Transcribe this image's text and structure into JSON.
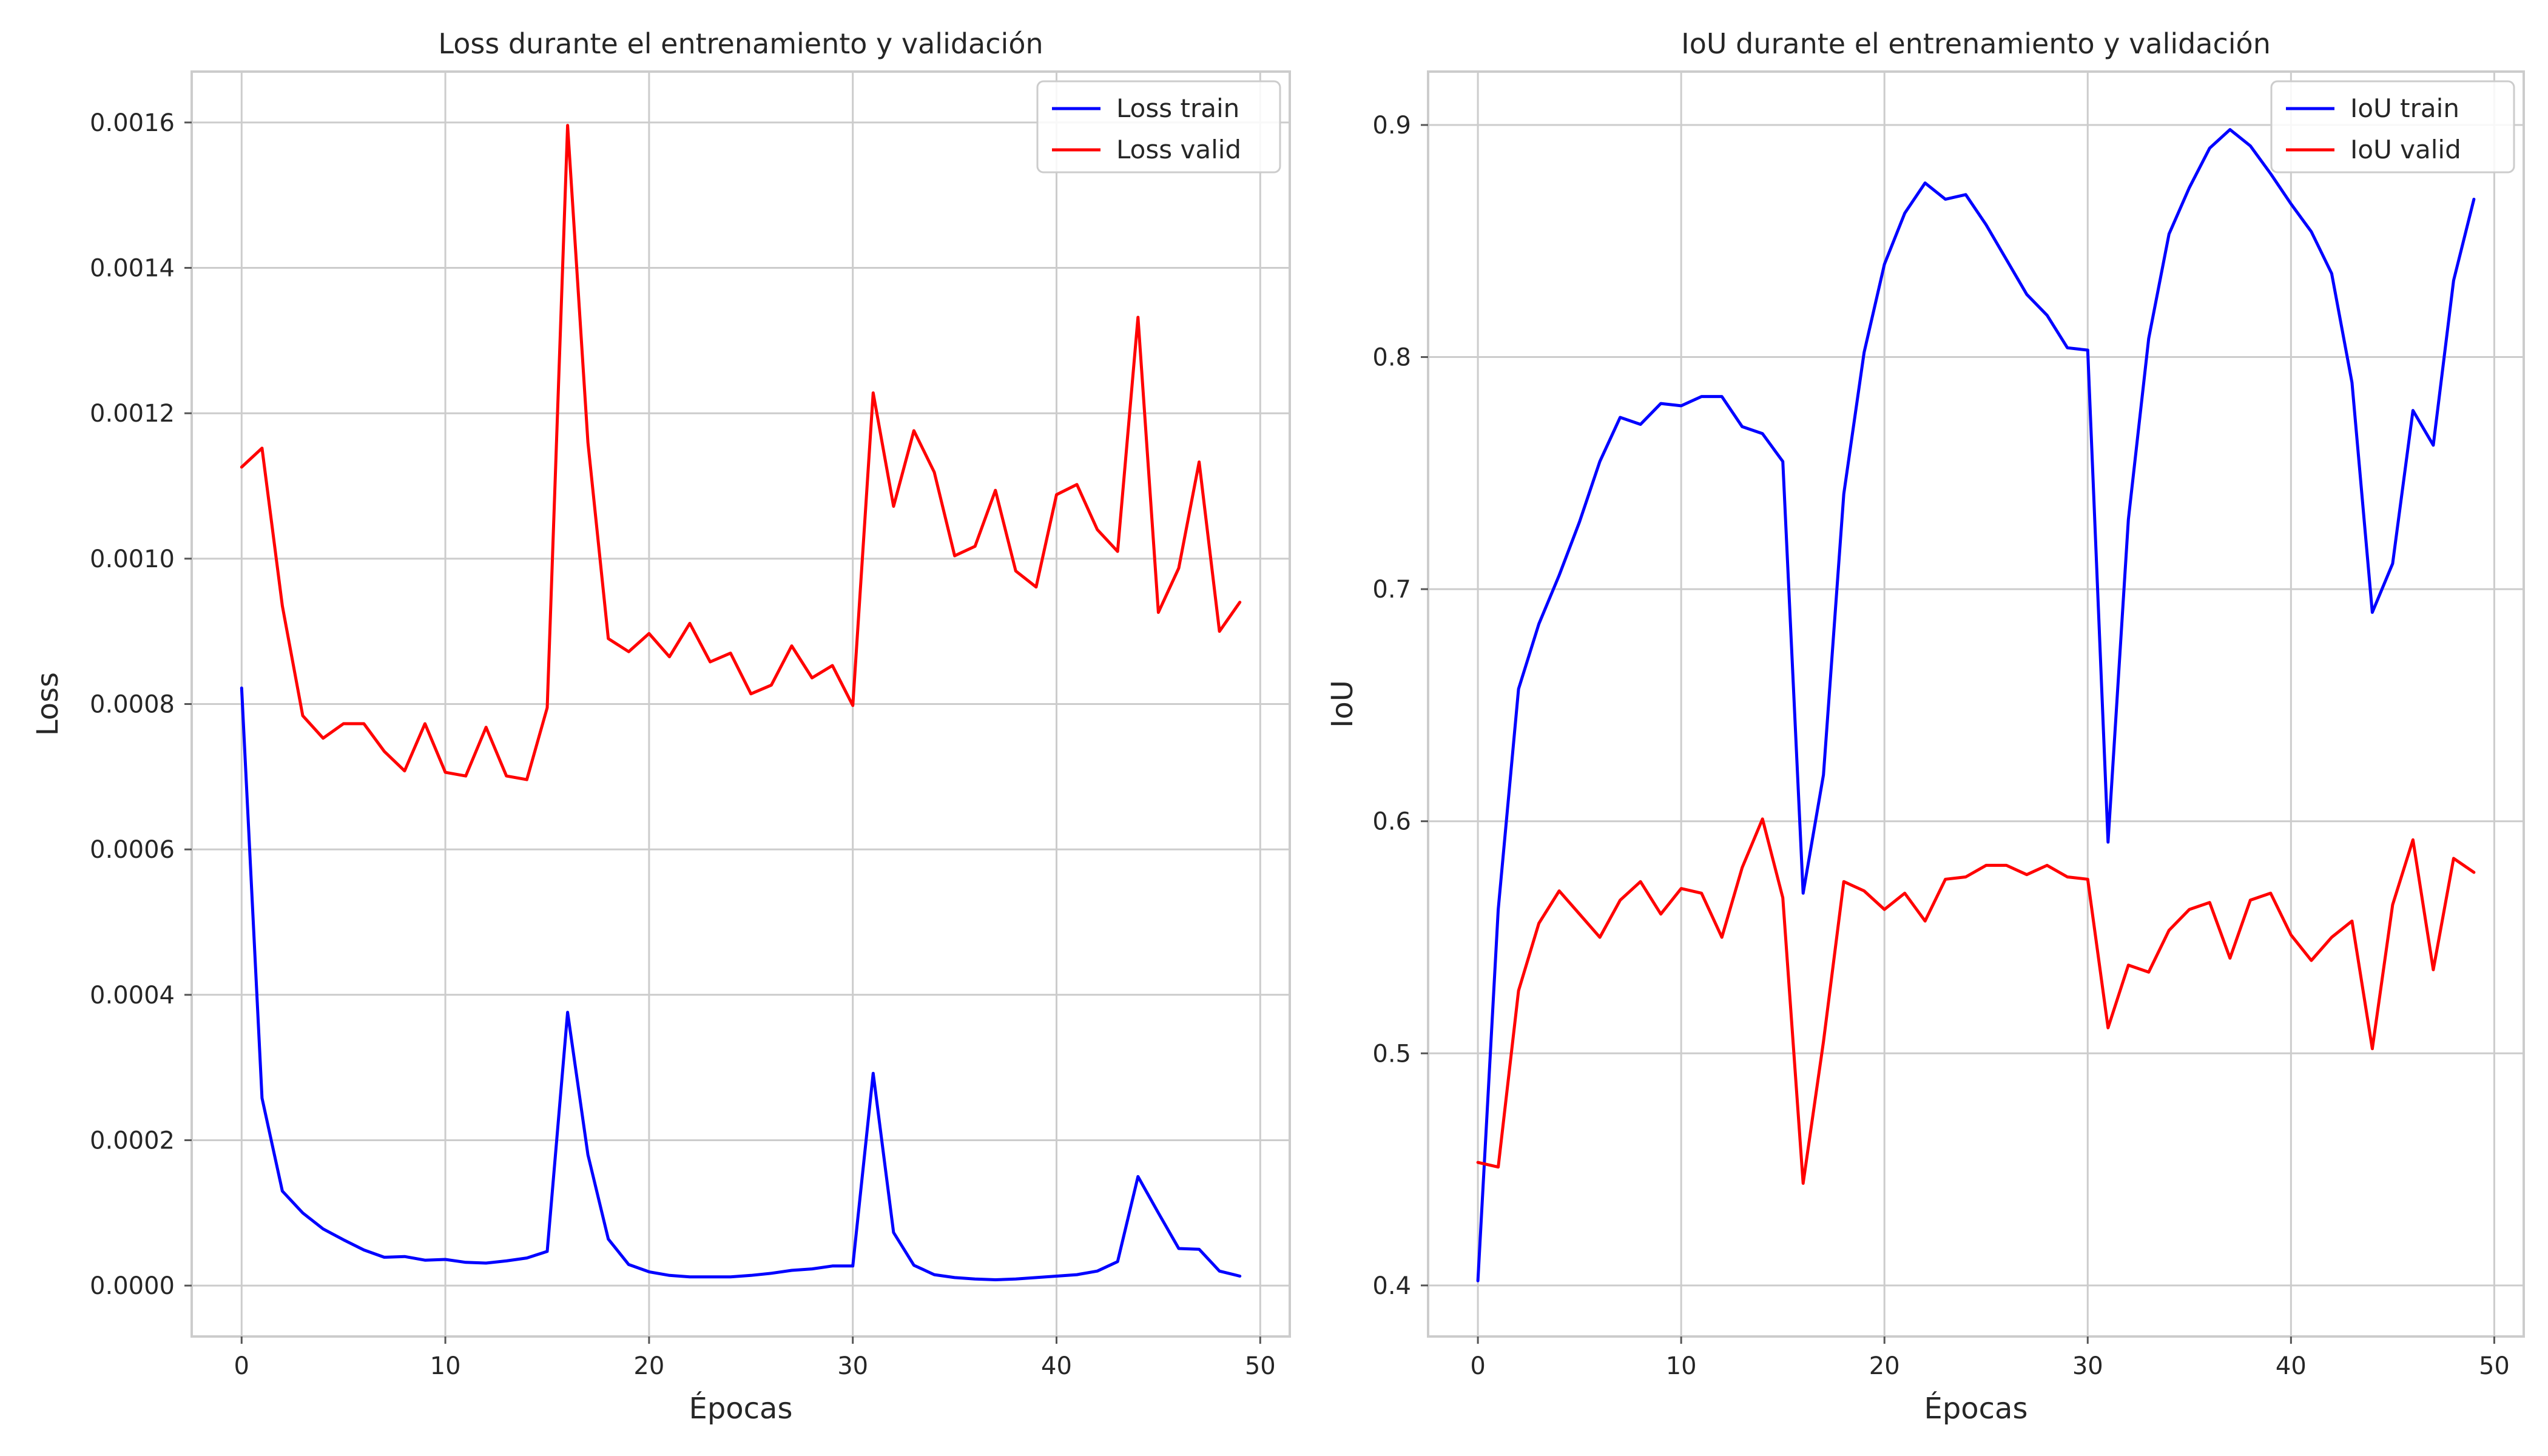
{
  "chart_data": [
    {
      "type": "line",
      "title": "Loss durante el entrenamiento y validación",
      "xlabel": "Épocas",
      "ylabel": "Loss",
      "xlim": [
        -2.45,
        51.45
      ],
      "ylim": [
        -7e-05,
        0.00167
      ],
      "xticks": [
        0,
        10,
        20,
        30,
        40,
        50
      ],
      "yticks": [
        0.0,
        0.0002,
        0.0004,
        0.0006,
        0.0008,
        0.001,
        0.0012,
        0.0014,
        0.0016
      ],
      "ytick_labels": [
        "0.0000",
        "0.0002",
        "0.0004",
        "0.0006",
        "0.0008",
        "0.0010",
        "0.0012",
        "0.0014",
        "0.0016"
      ],
      "grid": true,
      "legend_position": "top-right",
      "x": [
        0,
        1,
        2,
        3,
        4,
        5,
        6,
        7,
        8,
        9,
        10,
        11,
        12,
        13,
        14,
        15,
        16,
        17,
        18,
        19,
        20,
        21,
        22,
        23,
        24,
        25,
        26,
        27,
        28,
        29,
        30,
        31,
        32,
        33,
        34,
        35,
        36,
        37,
        38,
        39,
        40,
        41,
        42,
        43,
        44,
        45,
        46,
        47,
        48,
        49
      ],
      "series": [
        {
          "name": "Loss train",
          "color": "#0000ff",
          "values": [
            0.000822,
            0.000258,
            0.00013,
            0.0001,
            7.8e-05,
            6.3e-05,
            4.9e-05,
            3.9e-05,
            4e-05,
            3.5e-05,
            3.6e-05,
            3.2e-05,
            3.1e-05,
            3.4e-05,
            3.8e-05,
            4.7e-05,
            0.000376,
            0.00018,
            6.4e-05,
            2.9e-05,
            1.9e-05,
            1.4e-05,
            1.2e-05,
            1.2e-05,
            1.2e-05,
            1.4e-05,
            1.7e-05,
            2.1e-05,
            2.3e-05,
            2.7e-05,
            2.7e-05,
            0.000292,
            7.3e-05,
            2.8e-05,
            1.5e-05,
            1.1e-05,
            9e-06,
            8e-06,
            9e-06,
            1.1e-05,
            1.3e-05,
            1.5e-05,
            2e-05,
            3.3e-05,
            0.00015,
            0.0001,
            5.1e-05,
            5e-05,
            2e-05,
            1.3e-05
          ]
        },
        {
          "name": "Loss valid",
          "color": "#ff0000",
          "values": [
            0.001126,
            0.001152,
            0.000935,
            0.000784,
            0.000753,
            0.000773,
            0.000773,
            0.000735,
            0.000708,
            0.000773,
            0.000706,
            0.000701,
            0.000768,
            0.000701,
            0.000696,
            0.000795,
            0.001596,
            0.00116,
            0.00089,
            0.000872,
            0.000897,
            0.000865,
            0.000911,
            0.000858,
            0.00087,
            0.000814,
            0.000826,
            0.00088,
            0.000836,
            0.000853,
            0.000798,
            0.001228,
            0.001072,
            0.001176,
            0.001119,
            0.001004,
            0.001017,
            0.001094,
            0.000983,
            0.000961,
            0.001088,
            0.001102,
            0.00104,
            0.00101,
            0.001332,
            0.000926,
            0.000987,
            0.001133,
            0.0009,
            0.00094
          ]
        }
      ]
    },
    {
      "type": "line",
      "title": "IoU durante el entrenamiento y validación",
      "xlabel": "Épocas",
      "ylabel": "IoU",
      "xlim": [
        -2.45,
        51.45
      ],
      "ylim": [
        0.378,
        0.923
      ],
      "xticks": [
        0,
        10,
        20,
        30,
        40,
        50
      ],
      "yticks": [
        0.4,
        0.5,
        0.6,
        0.7,
        0.8,
        0.9
      ],
      "ytick_labels": [
        "0.4",
        "0.5",
        "0.6",
        "0.7",
        "0.8",
        "0.9"
      ],
      "grid": true,
      "legend_position": "top-right",
      "x": [
        0,
        1,
        2,
        3,
        4,
        5,
        6,
        7,
        8,
        9,
        10,
        11,
        12,
        13,
        14,
        15,
        16,
        17,
        18,
        19,
        20,
        21,
        22,
        23,
        24,
        25,
        26,
        27,
        28,
        29,
        30,
        31,
        32,
        33,
        34,
        35,
        36,
        37,
        38,
        39,
        40,
        41,
        42,
        43,
        44,
        45,
        46,
        47,
        48,
        49
      ],
      "series": [
        {
          "name": "IoU train",
          "color": "#0000ff",
          "values": [
            0.402,
            0.562,
            0.657,
            0.685,
            0.706,
            0.729,
            0.755,
            0.774,
            0.771,
            0.78,
            0.779,
            0.783,
            0.783,
            0.77,
            0.767,
            0.755,
            0.569,
            0.62,
            0.741,
            0.802,
            0.84,
            0.862,
            0.875,
            0.868,
            0.87,
            0.857,
            0.842,
            0.827,
            0.818,
            0.804,
            0.803,
            0.591,
            0.73,
            0.808,
            0.853,
            0.873,
            0.89,
            0.898,
            0.891,
            0.879,
            0.866,
            0.854,
            0.836,
            0.789,
            0.69,
            0.711,
            0.777,
            0.762,
            0.833,
            0.868
          ]
        },
        {
          "name": "IoU valid",
          "color": "#ff0000",
          "values": [
            0.453,
            0.451,
            0.527,
            0.556,
            0.57,
            0.56,
            0.55,
            0.566,
            0.574,
            0.56,
            0.571,
            0.569,
            0.55,
            0.58,
            0.601,
            0.567,
            0.444,
            0.505,
            0.574,
            0.57,
            0.562,
            0.569,
            0.557,
            0.575,
            0.576,
            0.581,
            0.581,
            0.577,
            0.581,
            0.576,
            0.575,
            0.511,
            0.538,
            0.535,
            0.553,
            0.562,
            0.565,
            0.541,
            0.566,
            0.569,
            0.551,
            0.54,
            0.55,
            0.557,
            0.502,
            0.564,
            0.592,
            0.536,
            0.584,
            0.578
          ]
        }
      ]
    }
  ]
}
